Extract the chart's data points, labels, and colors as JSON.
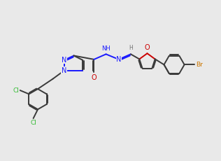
{
  "bg_color": "#e9e9e9",
  "bond_color": "#3a3a3a",
  "n_color": "#1a1aff",
  "o_color": "#cc0000",
  "cl_color": "#33bb33",
  "br_color": "#cc7700",
  "h_color": "#707070",
  "bond_width": 1.4,
  "dbo": 0.07,
  "xlim": [
    0,
    14
  ],
  "ylim": [
    0,
    10
  ]
}
